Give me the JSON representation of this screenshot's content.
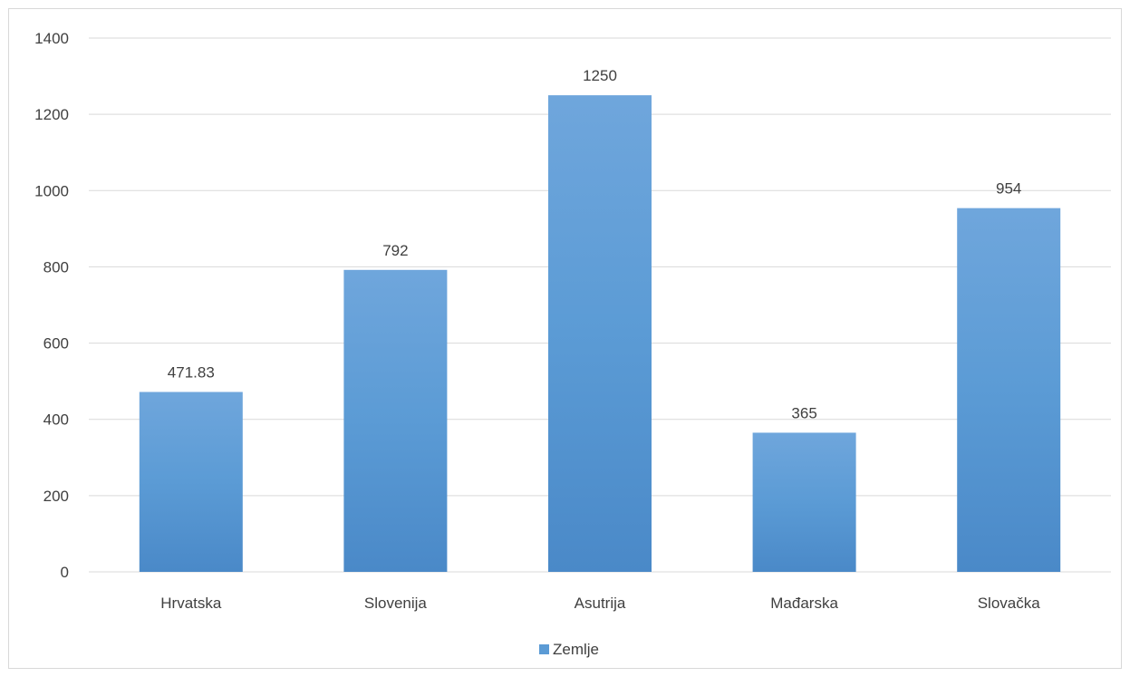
{
  "chart_data": {
    "type": "bar",
    "categories": [
      "Hrvatska",
      "Slovenija",
      "Asutrija",
      "Mađarska",
      "Slovačka"
    ],
    "series": [
      {
        "name": "Zemlje",
        "values": [
          471.83,
          792,
          1250,
          365,
          954
        ],
        "labels": [
          "471.83",
          "792",
          "1250",
          "365",
          "954"
        ]
      }
    ],
    "title": "",
    "xlabel": "",
    "ylabel": "",
    "ylim": [
      0,
      1400
    ],
    "yticks": [
      0,
      200,
      400,
      600,
      800,
      1000,
      1200,
      1400
    ],
    "grid": true,
    "legend_position": "bottom",
    "colors": {
      "bar_top": "#6fa6dc",
      "bar_mid": "#5b9bd5",
      "bar_bottom": "#4a89c8",
      "gridline": "#d9d9d9",
      "axis_line": "#d9d9d9",
      "legend_swatch": "#5b9bd5"
    }
  }
}
